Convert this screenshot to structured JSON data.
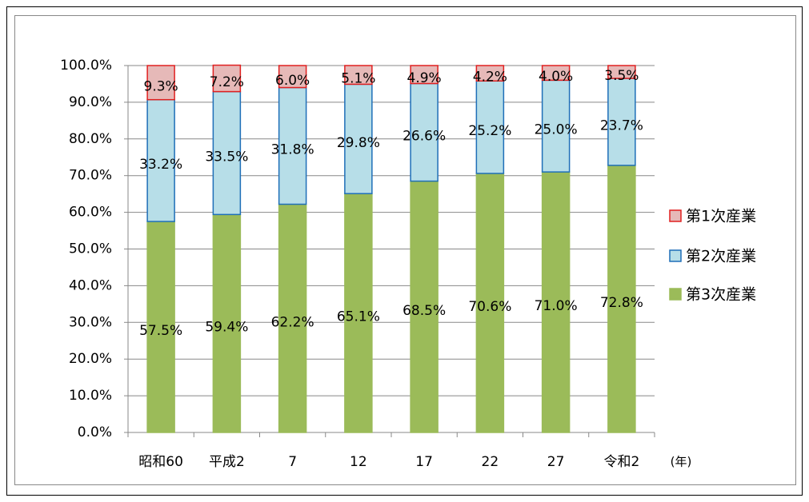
{
  "chart_data": {
    "type": "stacked_bar",
    "xlabel": "(年)",
    "categories": [
      "昭和60",
      "平成2",
      "7",
      "12",
      "17",
      "22",
      "27",
      "令和2"
    ],
    "series": [
      {
        "name": "第3次産業",
        "color": "#9bbb59",
        "edgecolor": "#9bbb59",
        "values": [
          57.5,
          59.4,
          62.2,
          65.1,
          68.5,
          70.6,
          71.0,
          72.8
        ],
        "value_labels": [
          "57.5%",
          "59.4%",
          "62.2%",
          "65.1%",
          "68.5%",
          "70.6%",
          "71.0%",
          "72.8%"
        ]
      },
      {
        "name": "第2次産業",
        "color": "#b7dee8",
        "edgecolor": "#1f6fb8",
        "values": [
          33.2,
          33.5,
          31.8,
          29.8,
          26.6,
          25.2,
          25.0,
          23.7
        ],
        "value_labels": [
          "33.2%",
          "33.5%",
          "31.8%",
          "29.8%",
          "26.6%",
          "25.2%",
          "25.0%",
          "23.7%"
        ]
      },
      {
        "name": "第1次産業",
        "color": "#e6b9b8",
        "edgecolor": "#e02020",
        "values": [
          9.3,
          7.2,
          6.0,
          5.1,
          4.9,
          4.2,
          4.0,
          3.5
        ],
        "value_labels": [
          "9.3%",
          "7.2%",
          "6.0%",
          "5.1%",
          "4.9%",
          "4.2%",
          "4.0%",
          "3.5%"
        ]
      }
    ],
    "ylim": [
      0,
      100
    ],
    "yticks": [
      {
        "value": 0,
        "label": "0.0%"
      },
      {
        "value": 10,
        "label": "10.0%"
      },
      {
        "value": 20,
        "label": "20.0%"
      },
      {
        "value": 30,
        "label": "30.0%"
      },
      {
        "value": 40,
        "label": "40.0%"
      },
      {
        "value": 50,
        "label": "50.0%"
      },
      {
        "value": 60,
        "label": "60.0%"
      },
      {
        "value": 70,
        "label": "70.0%"
      },
      {
        "value": 80,
        "label": "80.0%"
      },
      {
        "value": 90,
        "label": "90.0%"
      },
      {
        "value": 100,
        "label": "100.0%"
      }
    ],
    "grid": true,
    "legend": "right"
  }
}
